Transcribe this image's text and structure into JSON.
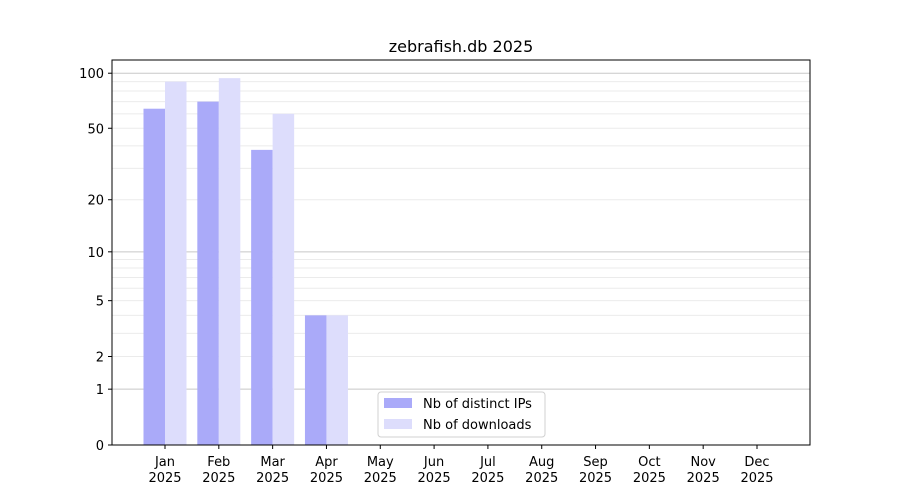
{
  "chart_data": {
    "type": "bar",
    "title": "zebrafish.db 2025",
    "xlabel": "",
    "ylabel": "",
    "yscale": "log10(1+y)",
    "ylim": [
      0,
      118
    ],
    "yticks": [
      0,
      1,
      2,
      5,
      10,
      20,
      50,
      100
    ],
    "grid": true,
    "legend_position": "lower-center",
    "categories": [
      "Jan\n2025",
      "Feb\n2025",
      "Mar\n2025",
      "Apr\n2025",
      "May\n2025",
      "Jun\n2025",
      "Jul\n2025",
      "Aug\n2025",
      "Sep\n2025",
      "Oct\n2025",
      "Nov\n2025",
      "Dec\n2025"
    ],
    "series": [
      {
        "name": "Nb of distinct IPs",
        "color": "#aaaaf9",
        "values": [
          64,
          70,
          38,
          4,
          0,
          0,
          0,
          0,
          0,
          0,
          0,
          0
        ]
      },
      {
        "name": "Nb of downloads",
        "color": "#ddddfc",
        "values": [
          90,
          94,
          60,
          4,
          0,
          0,
          0,
          0,
          0,
          0,
          0,
          0
        ]
      }
    ]
  }
}
